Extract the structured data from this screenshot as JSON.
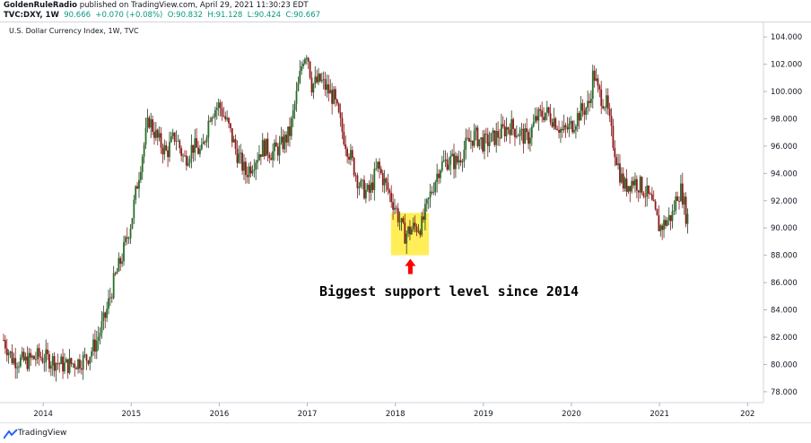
{
  "header": {
    "author": "GoldenRuleRadio",
    "published_text": "published on TradingView.com, April 29, 2021 11:30:23 EDT",
    "symbol": "TVC:DXY, 1W",
    "last": "90.666",
    "change": "+0.070 (+0.08%)",
    "open": "O:90.832",
    "high": "H:91.128",
    "low": "L:90.424",
    "close": "C:90.667"
  },
  "footer": {
    "brand": "TradingView"
  },
  "colors": {
    "up": "#000000",
    "down": "#8b1a1a",
    "wick": "#333333",
    "up_body": "#2a6e2a",
    "highlight": "#ffeb3b",
    "arrow": "#ff0000",
    "axis_text": "#131722"
  },
  "chart_data": {
    "type": "candlestick",
    "title": "U.S. Dollar Currency Index, 1W, TVC",
    "y_ticks": [
      "78.000",
      "80.000",
      "82.000",
      "84.000",
      "86.000",
      "88.000",
      "90.000",
      "92.000",
      "94.000",
      "96.000",
      "98.000",
      "100.000",
      "102.000",
      "104.000"
    ],
    "ylim": [
      77.2,
      105.0
    ],
    "x_ticks": [
      "2014",
      "2015",
      "2016",
      "2017",
      "2018",
      "2019",
      "2020",
      "2021",
      "202"
    ],
    "x_range": [
      2013.55,
      2022.15
    ],
    "grid": false,
    "annotation": "Biggest support level since 2014",
    "highlight_box": {
      "x": [
        2017.95,
        2018.38
      ],
      "y": [
        88.0,
        91.1
      ]
    },
    "arrow": {
      "x": 2018.17,
      "y_tip": 88.0
    },
    "keypoints": [
      [
        2013.55,
        81.8
      ],
      [
        2013.65,
        80.4
      ],
      [
        2013.8,
        80.2
      ],
      [
        2013.95,
        80.6
      ],
      [
        2014.1,
        80.3
      ],
      [
        2014.25,
        79.9
      ],
      [
        2014.4,
        80.2
      ],
      [
        2014.5,
        80.5
      ],
      [
        2014.6,
        81.6
      ],
      [
        2014.7,
        83.4
      ],
      [
        2014.8,
        86.0
      ],
      [
        2014.9,
        88.0
      ],
      [
        2015.0,
        90.5
      ],
      [
        2015.1,
        94.5
      ],
      [
        2015.2,
        98.0
      ],
      [
        2015.3,
        96.5
      ],
      [
        2015.4,
        95.5
      ],
      [
        2015.5,
        96.8
      ],
      [
        2015.6,
        95.0
      ],
      [
        2015.7,
        96.0
      ],
      [
        2015.8,
        95.5
      ],
      [
        2015.9,
        98.5
      ],
      [
        2016.0,
        99.0
      ],
      [
        2016.1,
        97.5
      ],
      [
        2016.2,
        95.5
      ],
      [
        2016.3,
        94.0
      ],
      [
        2016.4,
        95.0
      ],
      [
        2016.5,
        96.0
      ],
      [
        2016.6,
        95.5
      ],
      [
        2016.7,
        96.0
      ],
      [
        2016.8,
        97.0
      ],
      [
        2016.9,
        100.5
      ],
      [
        2016.95,
        102.5
      ],
      [
        2017.0,
        103.0
      ],
      [
        2017.05,
        100.5
      ],
      [
        2017.15,
        100.8
      ],
      [
        2017.3,
        99.5
      ],
      [
        2017.4,
        97.0
      ],
      [
        2017.5,
        95.0
      ],
      [
        2017.6,
        93.0
      ],
      [
        2017.7,
        92.5
      ],
      [
        2017.8,
        94.5
      ],
      [
        2017.9,
        93.0
      ],
      [
        2018.0,
        91.5
      ],
      [
        2018.1,
        89.5
      ],
      [
        2018.2,
        90.0
      ],
      [
        2018.3,
        90.2
      ],
      [
        2018.4,
        92.5
      ],
      [
        2018.5,
        94.5
      ],
      [
        2018.6,
        95.0
      ],
      [
        2018.7,
        94.8
      ],
      [
        2018.8,
        96.0
      ],
      [
        2018.9,
        96.8
      ],
      [
        2019.0,
        96.2
      ],
      [
        2019.1,
        96.5
      ],
      [
        2019.2,
        97.0
      ],
      [
        2019.3,
        97.5
      ],
      [
        2019.4,
        97.0
      ],
      [
        2019.5,
        96.5
      ],
      [
        2019.6,
        98.0
      ],
      [
        2019.7,
        98.5
      ],
      [
        2019.8,
        98.0
      ],
      [
        2019.9,
        97.0
      ],
      [
        2020.0,
        97.5
      ],
      [
        2020.1,
        98.5
      ],
      [
        2020.2,
        99.0
      ],
      [
        2020.25,
        101.5
      ],
      [
        2020.3,
        100.0
      ],
      [
        2020.4,
        99.0
      ],
      [
        2020.45,
        97.0
      ],
      [
        2020.55,
        94.0
      ],
      [
        2020.6,
        93.0
      ],
      [
        2020.7,
        93.5
      ],
      [
        2020.8,
        93.0
      ],
      [
        2020.9,
        92.0
      ],
      [
        2021.0,
        90.0
      ],
      [
        2021.05,
        90.3
      ],
      [
        2021.15,
        91.0
      ],
      [
        2021.2,
        92.5
      ],
      [
        2021.25,
        92.8
      ],
      [
        2021.3,
        91.0
      ],
      [
        2021.33,
        90.7
      ]
    ]
  }
}
